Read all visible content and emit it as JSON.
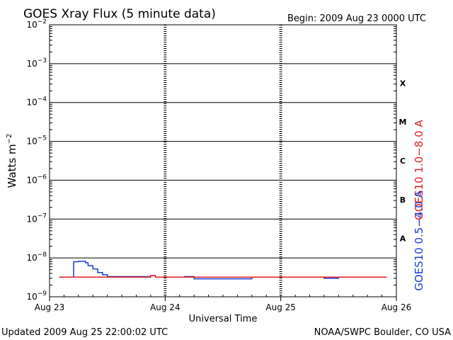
{
  "chart_data": {
    "type": "line",
    "title": "GOES Xray Flux (5 minute data)",
    "begin_label": "Begin:  2009 Aug 23 0000 UTC",
    "ylabel_main": "Watts m",
    "ylabel_sup": "−2",
    "xlabel": "Universal Time",
    "y_scale": "log",
    "ylim": [
      1e-09,
      0.01
    ],
    "y_ticks": [
      {
        "value": 0.01,
        "base": "10",
        "exp": "−2"
      },
      {
        "value": 0.001,
        "base": "10",
        "exp": "−3"
      },
      {
        "value": 0.0001,
        "base": "10",
        "exp": "−4"
      },
      {
        "value": 1e-05,
        "base": "10",
        "exp": "−5"
      },
      {
        "value": 1e-06,
        "base": "10",
        "exp": "−6"
      },
      {
        "value": 1e-07,
        "base": "10",
        "exp": "−7"
      },
      {
        "value": 1e-08,
        "base": "10",
        "exp": "−8"
      },
      {
        "value": 1e-09,
        "base": "10",
        "exp": "−9"
      }
    ],
    "xlim": [
      "2009-08-23 00:00",
      "2009-08-26 00:00"
    ],
    "x_ticks": [
      "Aug 23",
      "Aug 24",
      "Aug 25",
      "Aug 26"
    ],
    "flare_classes": [
      {
        "label": "X",
        "ymin": 0.0001,
        "ymax": 0.001
      },
      {
        "label": "M",
        "ymin": 1e-05,
        "ymax": 0.0001
      },
      {
        "label": "C",
        "ymin": 1e-06,
        "ymax": 1e-05
      },
      {
        "label": "B",
        "ymin": 1e-07,
        "ymax": 1e-06
      },
      {
        "label": "A",
        "ymin": 1e-08,
        "ymax": 1e-07
      }
    ],
    "series": [
      {
        "name": "GOES10 1.0−8.0 A",
        "color": "#e02020",
        "x": [
          "2009-08-23 02:00",
          "2009-08-23 12:00",
          "2009-08-23 20:00",
          "2009-08-23 21:00",
          "2009-08-23 22:00",
          "2009-08-24 06:00",
          "2009-08-24 18:00",
          "2009-08-25 06:00",
          "2009-08-25 18:00",
          "2009-08-25 22:00"
        ],
        "values": [
          3.2e-09,
          3.2e-09,
          3.2e-09,
          3.5e-09,
          3.2e-09,
          3.2e-09,
          3.2e-09,
          3.2e-09,
          3.2e-09,
          3.2e-09
        ]
      },
      {
        "name": "GOES10 0.5−4.0 A",
        "color": "#1a3ad6",
        "x": [
          "2009-08-23 02:00",
          "2009-08-23 04:45",
          "2009-08-23 05:00",
          "2009-08-23 05:30",
          "2009-08-23 06:00",
          "2009-08-23 07:30",
          "2009-08-23 08:00",
          "2009-08-23 09:00",
          "2009-08-23 10:00",
          "2009-08-23 11:00",
          "2009-08-23 12:00",
          "2009-08-23 20:00",
          "2009-08-23 21:00",
          "2009-08-23 22:00",
          "2009-08-24 04:00",
          "2009-08-24 06:00",
          "2009-08-24 10:00",
          "2009-08-24 18:00",
          "2009-08-25 05:00",
          "2009-08-25 09:00",
          "2009-08-25 12:00",
          "2009-08-25 22:00"
        ],
        "values": [
          3.2e-09,
          3.2e-09,
          8e-09,
          8e-09,
          8.2e-09,
          7.5e-09,
          6.3e-09,
          5.2e-09,
          4.2e-09,
          3.7e-09,
          3.3e-09,
          3.3e-09,
          3.5e-09,
          3.2e-09,
          3.3e-09,
          2.9e-09,
          2.9e-09,
          3.2e-09,
          3.2e-09,
          3e-09,
          3.2e-09,
          3.2e-09
        ]
      }
    ]
  },
  "footer": {
    "updated": "Updated 2009 Aug 25 22:00:02 UTC",
    "credit": "NOAA/SWPC Boulder, CO USA"
  }
}
